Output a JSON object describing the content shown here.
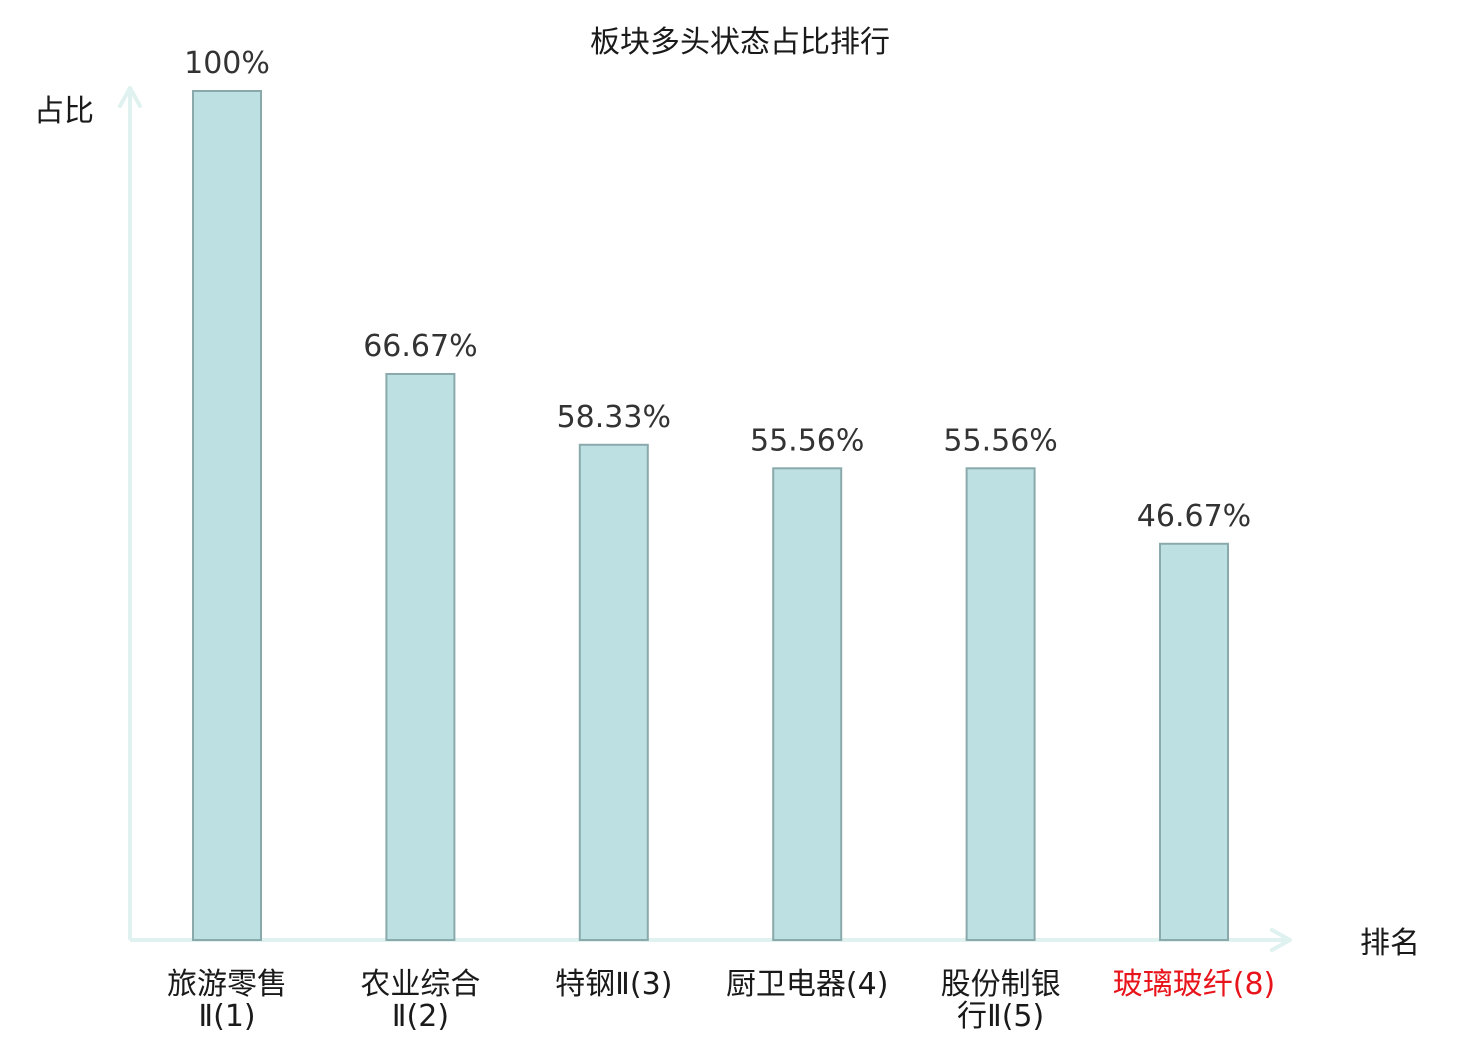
{
  "chart_data": {
    "type": "bar",
    "title": "板块多头状态占比排行",
    "ylabel": "占比",
    "xlabel": "排名",
    "ylim": [
      0,
      100
    ],
    "grid": false,
    "categories": [
      {
        "lines": [
          "旅游零售",
          "Ⅱ(1)"
        ],
        "highlight": false
      },
      {
        "lines": [
          "农业综合",
          "Ⅱ(2)"
        ],
        "highlight": false
      },
      {
        "lines": [
          "特钢Ⅱ(3)"
        ],
        "highlight": false
      },
      {
        "lines": [
          "厨卫电器(4)"
        ],
        "highlight": false
      },
      {
        "lines": [
          "股份制银",
          "行Ⅱ(5)"
        ],
        "highlight": false
      },
      {
        "lines": [
          "玻璃玻纤(8)"
        ],
        "highlight": true
      }
    ],
    "values": [
      100,
      66.67,
      58.33,
      55.56,
      55.56,
      46.67
    ],
    "value_labels": [
      "100%",
      "66.67%",
      "58.33%",
      "55.56%",
      "55.56%",
      "46.67%"
    ],
    "colors": {
      "bar_fill": "#bde0e3",
      "bar_stroke": "#8aa9ab",
      "axis": "#dff2ef",
      "text": "#333333",
      "category_text": "#1a1a1a",
      "highlight": "#e8141b"
    }
  }
}
